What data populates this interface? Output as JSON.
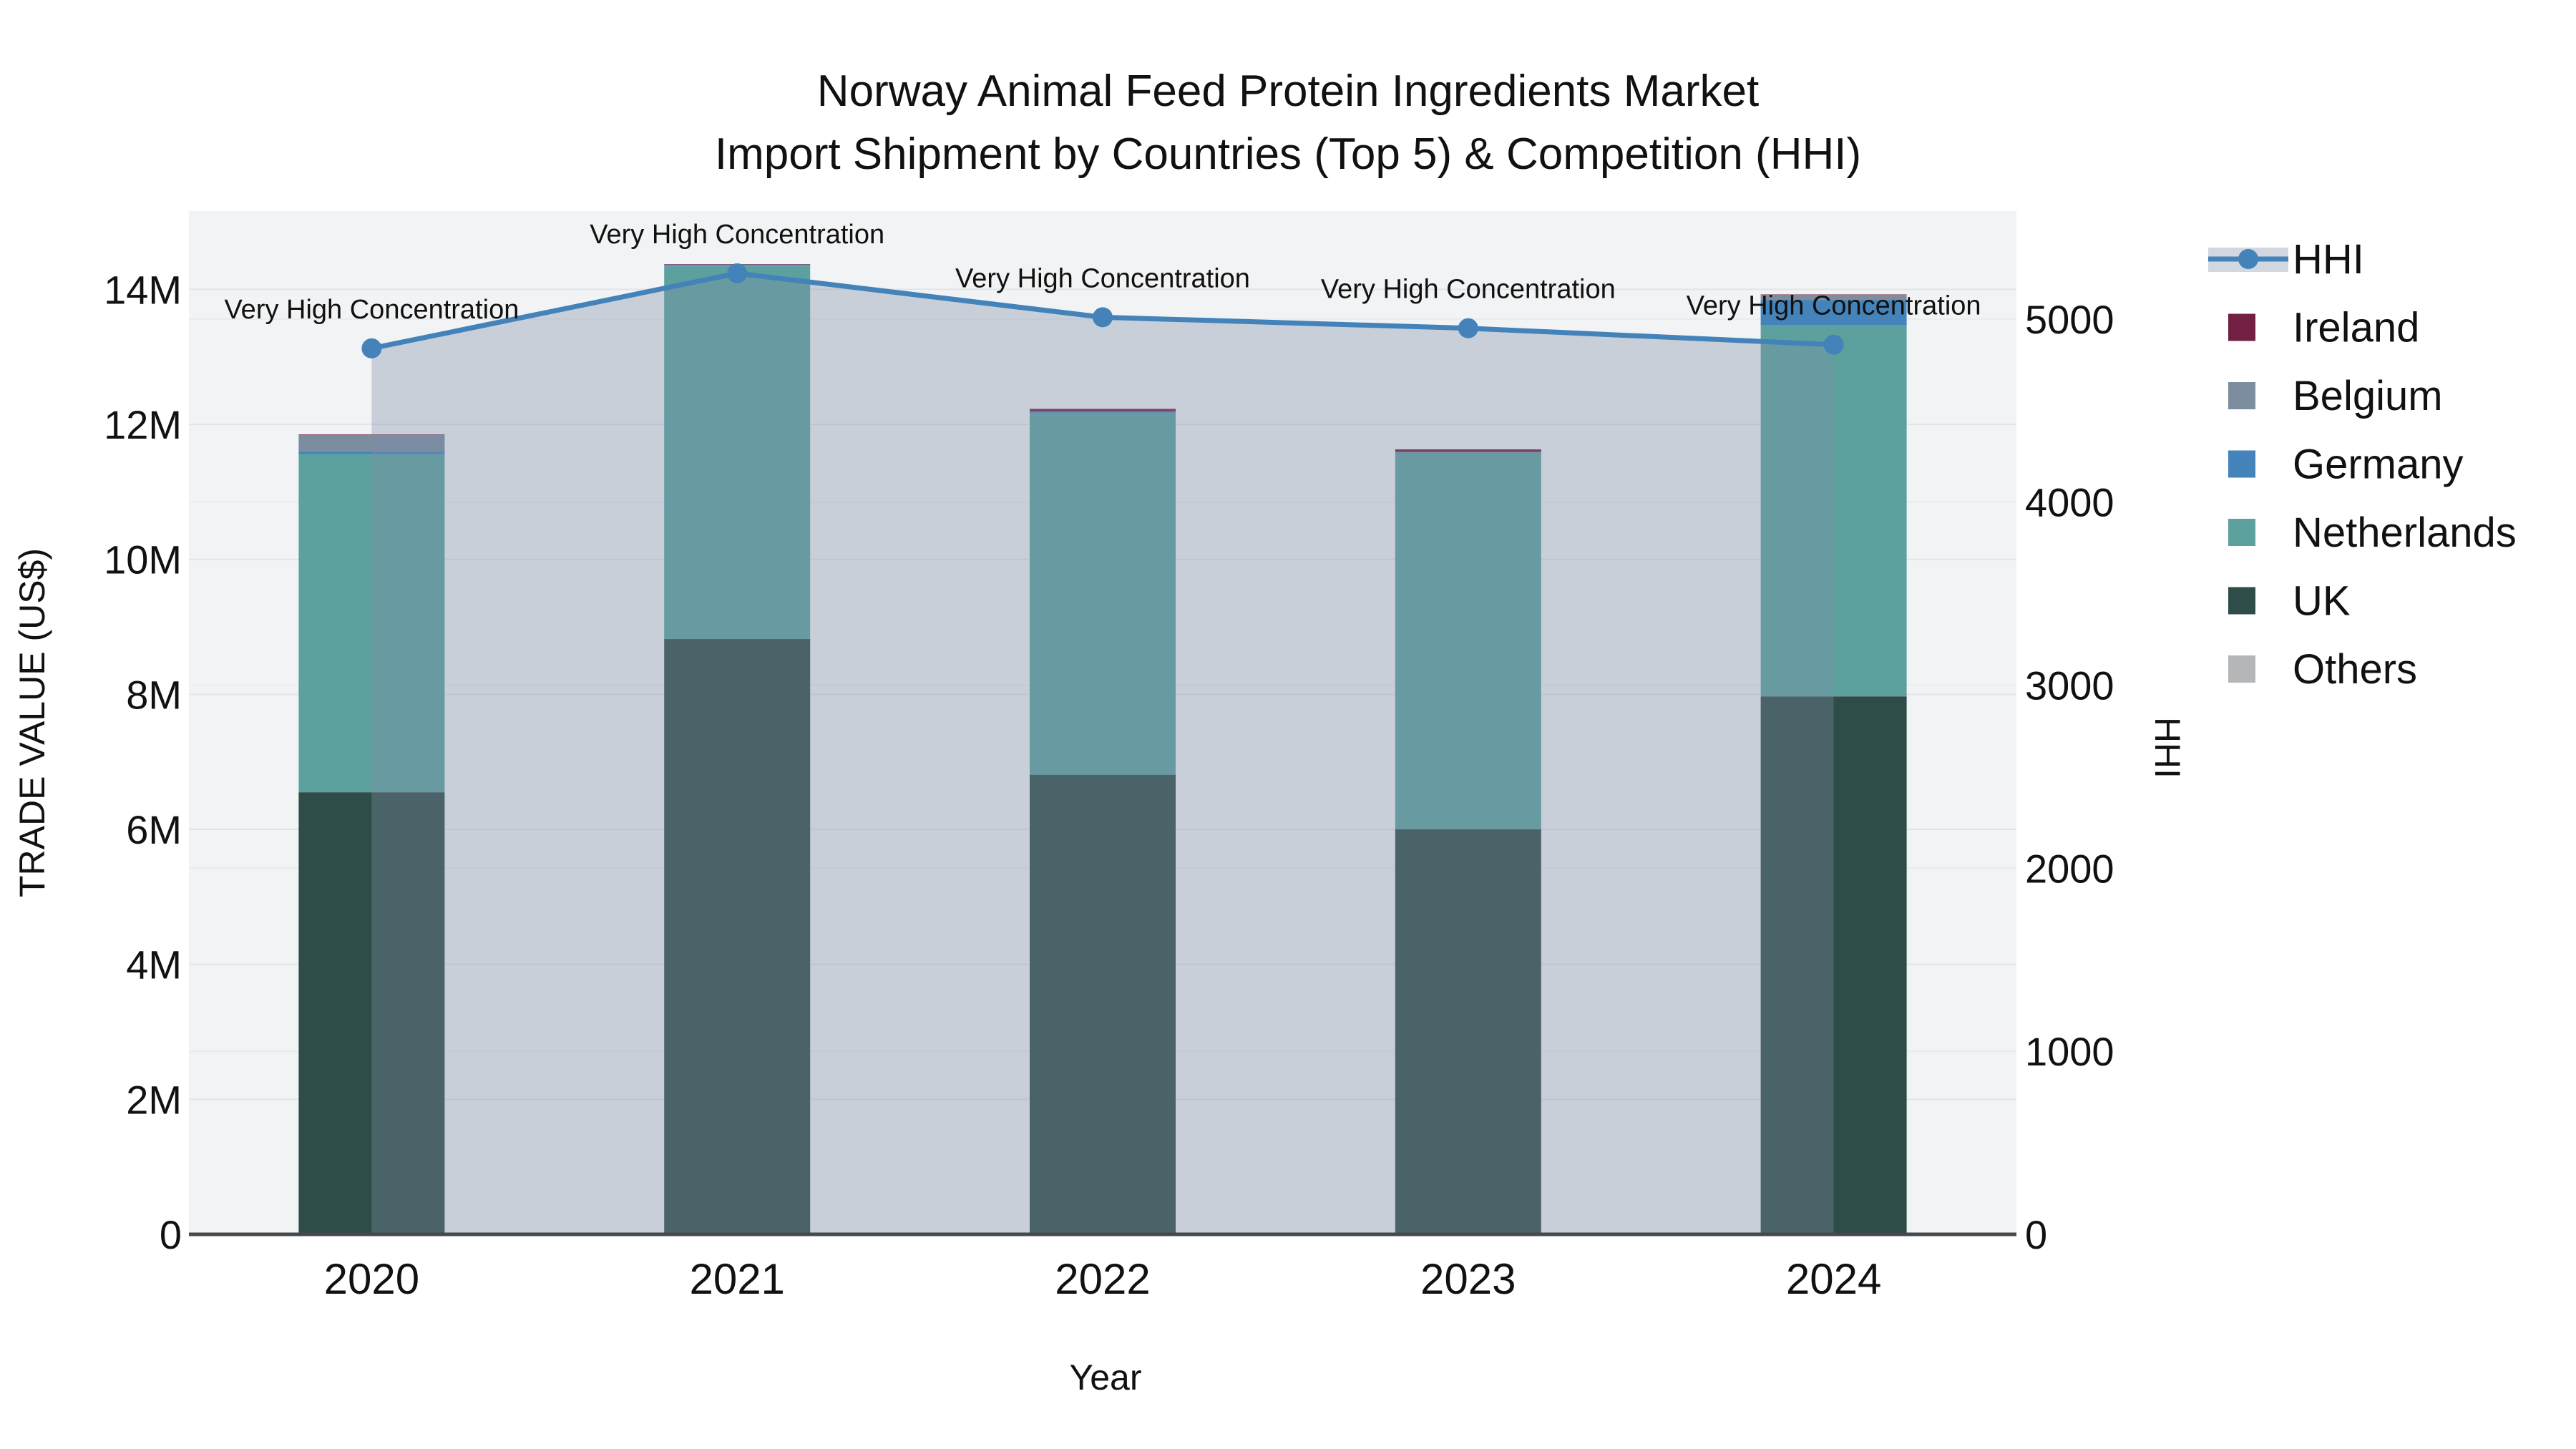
{
  "title": {
    "line1": "Norway Animal Feed Protein Ingredients Market",
    "line2": "Import Shipment by Countries (Top 5) & Competition (HHI)"
  },
  "colors": {
    "hhi_line": "#4383b9",
    "hhi_area_fill_rgba": "rgba(125,140,165,0.35)",
    "plot_background": "#f2f3f4",
    "gridline_left": "#e2e4e6",
    "gridline_right": "#e9ebed",
    "axis_line": "#45484d",
    "ireland": "#712044",
    "belgium": "#7c8da0",
    "germany": "#4484bb",
    "netherlands": "#5ca19e",
    "uk": "#2e4d49",
    "others": "#b4b6b8"
  },
  "chart_data": {
    "type": "bar",
    "subtype": "stacked-bars-with-line-area",
    "title": "Norway Animal Feed Protein Ingredients Market — Import Shipment by Countries (Top 5) & Competition (HHI)",
    "categories": [
      "2020",
      "2021",
      "2022",
      "2023",
      "2024"
    ],
    "xlabel": "Year",
    "ylabel_left": "TRADE VALUE (US$)",
    "ylabel_right": "HHI",
    "grid": true,
    "legend_position": "right",
    "series": [
      {
        "name": "UK",
        "color": "#2e4d49",
        "unit": "M US$",
        "values": [
          6.55,
          8.82,
          6.81,
          6.0,
          7.97
        ]
      },
      {
        "name": "Netherlands",
        "color": "#5ca19e",
        "unit": "M US$",
        "values": [
          5.01,
          5.52,
          5.36,
          5.57,
          5.5
        ]
      },
      {
        "name": "Germany",
        "color": "#4484bb",
        "unit": "M US$",
        "values": [
          0.04,
          0.01,
          0.01,
          0.01,
          0.37
        ]
      },
      {
        "name": "Belgium",
        "color": "#7c8da0",
        "unit": "M US$",
        "values": [
          0.24,
          0.02,
          0.01,
          0.01,
          0.08
        ]
      },
      {
        "name": "Ireland",
        "color": "#712044",
        "unit": "M US$",
        "values": [
          0.01,
          0.005,
          0.04,
          0.04,
          0.005
        ]
      },
      {
        "name": "Others",
        "color": "#b4b6b8",
        "unit": "M US$",
        "values": [
          0.0,
          0.0,
          0.0,
          0.0,
          0.0
        ]
      }
    ],
    "bar_totals_millions": [
      11.85,
      14.37,
      12.23,
      11.63,
      13.93
    ],
    "hhi": {
      "name": "HHI",
      "color": "#4383b9",
      "area_fill": "rgba(125,140,165,0.35)",
      "values": [
        4840,
        5250,
        5010,
        4950,
        4860
      ],
      "annotations": [
        "Very High Concentration",
        "Very High Concentration",
        "Very High Concentration",
        "Very High Concentration",
        "Very High Concentration"
      ]
    },
    "y_axis_left": {
      "title": "TRADE VALUE (US$)",
      "max_value_millions": 15.16,
      "ticks": [
        {
          "v": 0,
          "label": "0"
        },
        {
          "v": 2,
          "label": "2M"
        },
        {
          "v": 4,
          "label": "4M"
        },
        {
          "v": 6,
          "label": "6M"
        },
        {
          "v": 8,
          "label": "8M"
        },
        {
          "v": 10,
          "label": "10M"
        },
        {
          "v": 12,
          "label": "12M"
        },
        {
          "v": 14,
          "label": "14M"
        }
      ]
    },
    "y_axis_right": {
      "title": "HHI",
      "max_value": 5590,
      "ticks": [
        {
          "v": 0,
          "label": "0"
        },
        {
          "v": 1000,
          "label": "1000"
        },
        {
          "v": 2000,
          "label": "2000"
        },
        {
          "v": 3000,
          "label": "3000"
        },
        {
          "v": 4000,
          "label": "4000"
        },
        {
          "v": 5000,
          "label": "5000"
        }
      ]
    },
    "legend": {
      "items": [
        {
          "label": "HHI",
          "type": "line",
          "color": "#4383b9",
          "band_fill": "rgba(125,140,165,0.35)"
        },
        {
          "label": "Ireland",
          "type": "swatch",
          "color": "#712044"
        },
        {
          "label": "Belgium",
          "type": "swatch",
          "color": "#7c8da0"
        },
        {
          "label": "Germany",
          "type": "swatch",
          "color": "#4484bb"
        },
        {
          "label": "Netherlands",
          "type": "swatch",
          "color": "#5ca19e"
        },
        {
          "label": "UK",
          "type": "swatch",
          "color": "#2e4d49"
        },
        {
          "label": "Others",
          "type": "swatch",
          "color": "#b4b6b8"
        }
      ]
    }
  }
}
